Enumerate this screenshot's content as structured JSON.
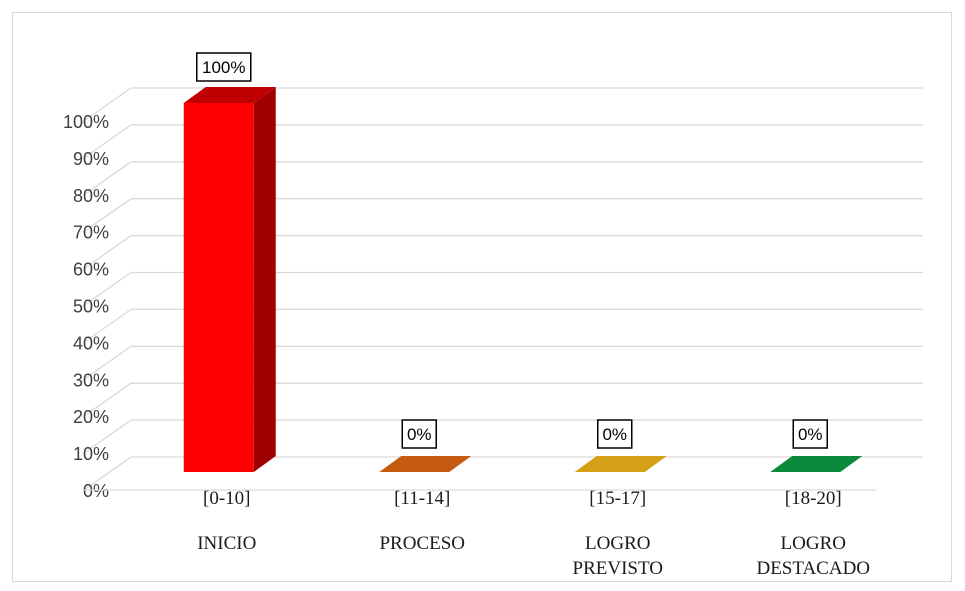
{
  "chart_data": {
    "type": "bar",
    "title": "",
    "xlabel": "",
    "ylabel": "",
    "categories": [
      {
        "range": "[0-10]",
        "lines": [
          "INICIO"
        ]
      },
      {
        "range": "[11-14]",
        "lines": [
          "PROCESO"
        ]
      },
      {
        "range": "[15-17]",
        "lines": [
          "LOGRO",
          "PREVISTO"
        ]
      },
      {
        "range": "[18-20]",
        "lines": [
          "LOGRO",
          "DESTACADO"
        ]
      }
    ],
    "values": [
      100,
      0,
      0,
      0
    ],
    "data_labels": [
      "100%",
      "0%",
      "0%",
      "0%"
    ],
    "ylim": [
      0,
      100
    ],
    "yticks": [
      0,
      10,
      20,
      30,
      40,
      50,
      60,
      70,
      80,
      90,
      100
    ],
    "ytick_labels": [
      "0%",
      "10%",
      "20%",
      "30%",
      "40%",
      "50%",
      "60%",
      "70%",
      "80%",
      "90%",
      "100%"
    ],
    "bar_colors": [
      {
        "front": "#ff0000",
        "side": "#a00000",
        "top": "#c00000"
      },
      {
        "front": "#c55a11",
        "side": "#8a3e0b",
        "top": "#c55a11"
      },
      {
        "front": "#d4a017",
        "side": "#9a740f",
        "top": "#d4a017"
      },
      {
        "front": "#0a8a3a",
        "side": "#066027",
        "top": "#0a8a3a"
      }
    ],
    "gridlines": true,
    "legend": "none",
    "style": "3d-column"
  }
}
